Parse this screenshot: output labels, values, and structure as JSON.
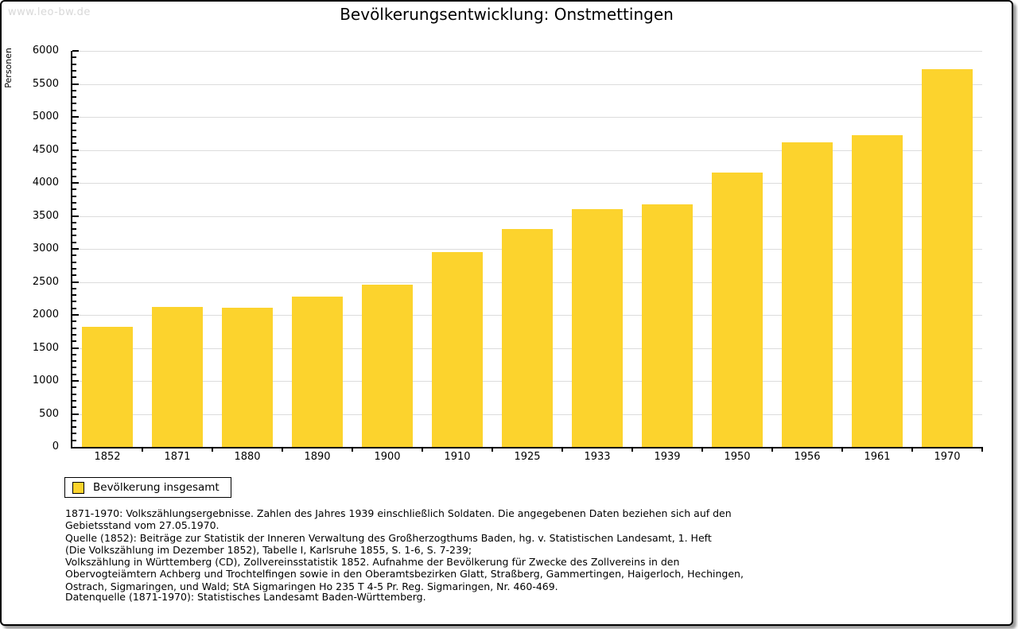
{
  "page": {
    "watermark": "www.leo-bw.de",
    "title": "Bevölkerungsentwicklung: Onstmettingen"
  },
  "chart_data": {
    "type": "bar",
    "title": "Bevölkerungsentwicklung: Onstmettingen",
    "xlabel": "",
    "ylabel": "Personen",
    "ylim": [
      0,
      6000
    ],
    "ytick_step": 500,
    "minor_tick_step": 100,
    "grid": true,
    "legend_position": "bottom-left",
    "categories": [
      "1852",
      "1871",
      "1880",
      "1890",
      "1900",
      "1910",
      "1925",
      "1933",
      "1939",
      "1950",
      "1956",
      "1961",
      "1970"
    ],
    "series": [
      {
        "name": "Bevölkerung insgesamt",
        "values": [
          1820,
          2115,
          2110,
          2280,
          2460,
          2950,
          3300,
          3600,
          3670,
          4160,
          4610,
          4720,
          5720
        ]
      }
    ],
    "bar_color": "#FCD32D"
  },
  "legend": {
    "label": "Bevölkerung insgesamt",
    "swatch_color": "#FCD32D"
  },
  "footnotes": {
    "lines": [
      "1871-1970: Volkszählungsergebnisse. Zahlen des Jahres 1939 einschließlich Soldaten. Die angegebenen Daten beziehen sich auf den",
      "Gebietsstand vom 27.05.1970.",
      "Quelle (1852): Beiträge zur Statistik der Inneren Verwaltung des Großherzogthums Baden, hg. v. Statistischen Landesamt, 1. Heft",
      "(Die Volkszählung im Dezember 1852), Tabelle I, Karlsruhe 1855, S. 1-6, S. 7-239;",
      "Volkszählung in Württemberg (CD), Zollvereinsstatistik 1852. Aufnahme der Bevölkerung für Zwecke des Zollvereins in den",
      "Obervogteiämtern Achberg und Trochtelfingen sowie in den Oberamtsbezirken Glatt, Straßberg, Gammertingen, Haigerloch, Hechingen,",
      "Ostrach, Sigmaringen, und Wald; StA Sigmaringen Ho 235 T 4-5 Pr. Reg. Sigmaringen, Nr. 460-469."
    ],
    "datasource": "Datenquelle (1871-1970): Statistisches Landesamt Baden-Württemberg."
  },
  "colors": {
    "bar": "#FCD32D",
    "grid": "#DCDCDC",
    "axis": "#000000",
    "watermark": "#D8D8D8",
    "text": "#000000"
  }
}
